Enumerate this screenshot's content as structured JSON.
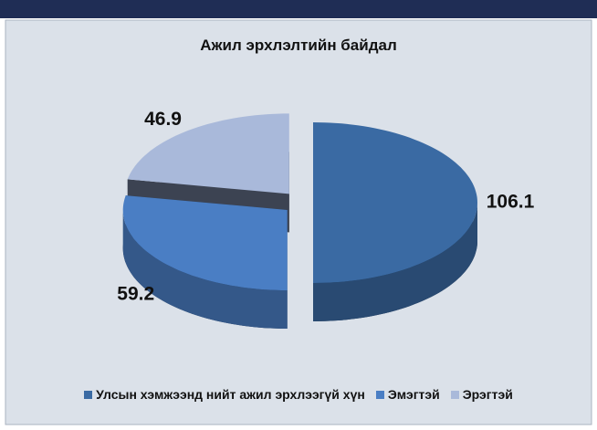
{
  "chart_data": {
    "type": "pie3d",
    "title": "Ажил эрхлэлтийн байдал",
    "categories": [
      "Улсын хэмжээнд нийт ажил эрхлээгүй хүн",
      "Эмэгтэй",
      "Эрэгтэй"
    ],
    "values": [
      106.1,
      59.2,
      46.9
    ],
    "colors": [
      "#3a6aa3",
      "#4a7ec4",
      "#a9b9da"
    ],
    "legend": "bottom"
  }
}
